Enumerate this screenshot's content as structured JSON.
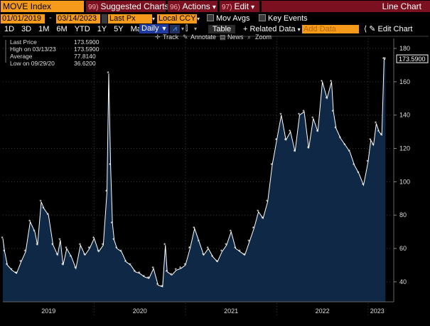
{
  "header": {
    "security": "MOVE Index",
    "suggested_charts": "Suggested Charts",
    "suggested_code": "99)",
    "actions": "Actions",
    "actions_code": "96)",
    "edit": "Edit",
    "edit_code": "97)",
    "view_title": "Line Chart"
  },
  "controls": {
    "start_date": "01/01/2019",
    "end_date": "03/14/2023",
    "field": "Last Px",
    "currency": "Local CCY",
    "mov_avgs": "Mov Avgs",
    "key_events": "Key Events"
  },
  "periods": [
    "1D",
    "3D",
    "1M",
    "6M",
    "YTD",
    "1Y",
    "5Y",
    "Max"
  ],
  "toolbar": {
    "frequency": "Daily",
    "table": "Table",
    "related_data": "Related Data",
    "add_data_placeholder": "Add Data",
    "edit_chart": "Edit Chart",
    "track": "Track",
    "annotate": "Annotate",
    "news": "News",
    "zoom": "Zoom"
  },
  "legend": [
    {
      "label": "Last Price",
      "value": "173.5900"
    },
    {
      "label": "High on 03/13/23",
      "value": "173.5900"
    },
    {
      "label": "Average",
      "value": "77.8140"
    },
    {
      "label": "Low on 09/29/20",
      "value": "36.6200"
    }
  ],
  "last_value_tag": "173.5900",
  "colors": {
    "orange": "#f59a1a",
    "red": "#7a1020",
    "area_fill": "#0f2846",
    "line": "#ffffff"
  },
  "chart_data": {
    "type": "area",
    "title": "",
    "ylim": [
      28,
      186
    ],
    "yticks": [
      40,
      60,
      80,
      100,
      120,
      140,
      160,
      180
    ],
    "xlim": [
      2019.0,
      2023.25
    ],
    "xticks": [
      {
        "label": "2019",
        "x": 2019.5
      },
      {
        "label": "2020",
        "x": 2020.5
      },
      {
        "label": "2021",
        "x": 2021.5
      },
      {
        "label": "2022",
        "x": 2022.5
      },
      {
        "label": "2023",
        "x": 2023.1
      }
    ],
    "grid": true,
    "series": [
      {
        "x": [
          2019.0,
          2019.02,
          2019.05,
          2019.1,
          2019.15,
          2019.2,
          2019.25,
          2019.3,
          2019.35,
          2019.38,
          2019.42,
          2019.45,
          2019.5,
          2019.55,
          2019.6,
          2019.63,
          2019.66,
          2019.7,
          2019.75,
          2019.8,
          2019.85,
          2019.9,
          2019.95,
          2020.0,
          2020.05,
          2020.1,
          2020.14,
          2020.16,
          2020.18,
          2020.2,
          2020.22,
          2020.25,
          2020.3,
          2020.35,
          2020.4,
          2020.45,
          2020.5,
          2020.55,
          2020.6,
          2020.65,
          2020.7,
          2020.75,
          2020.78,
          2020.8,
          2020.85,
          2020.9,
          2020.95,
          2021.0,
          2021.05,
          2021.1,
          2021.15,
          2021.2,
          2021.25,
          2021.3,
          2021.35,
          2021.4,
          2021.45,
          2021.5,
          2021.55,
          2021.6,
          2021.65,
          2021.7,
          2021.75,
          2021.8,
          2021.85,
          2021.9,
          2021.95,
          2022.0,
          2022.05,
          2022.1,
          2022.15,
          2022.2,
          2022.25,
          2022.3,
          2022.35,
          2022.4,
          2022.45,
          2022.5,
          2022.55,
          2022.6,
          2022.62,
          2022.65,
          2022.7,
          2022.75,
          2022.8,
          2022.85,
          2022.9,
          2022.95,
          2023.0,
          2023.03,
          2023.06,
          2023.09,
          2023.12,
          2023.15,
          2023.175,
          2023.19
        ],
        "values": [
          66,
          58,
          50,
          47,
          45,
          52,
          58,
          76,
          70,
          62,
          88,
          84,
          80,
          62,
          56,
          65,
          50,
          60,
          55,
          48,
          62,
          56,
          60,
          66,
          58,
          62,
          94,
          165,
          110,
          75,
          65,
          60,
          58,
          52,
          50,
          46,
          45,
          43,
          42,
          48,
          38,
          37,
          62,
          46,
          44,
          47,
          48,
          50,
          60,
          72,
          64,
          56,
          60,
          55,
          52,
          58,
          62,
          70,
          60,
          58,
          56,
          64,
          72,
          82,
          78,
          88,
          110,
          125,
          140,
          125,
          130,
          118,
          140,
          142,
          120,
          138,
          130,
          160,
          150,
          160,
          142,
          132,
          126,
          122,
          118,
          110,
          105,
          98,
          112,
          125,
          122,
          135,
          130,
          128,
          173.59,
          173.59
        ]
      }
    ]
  }
}
